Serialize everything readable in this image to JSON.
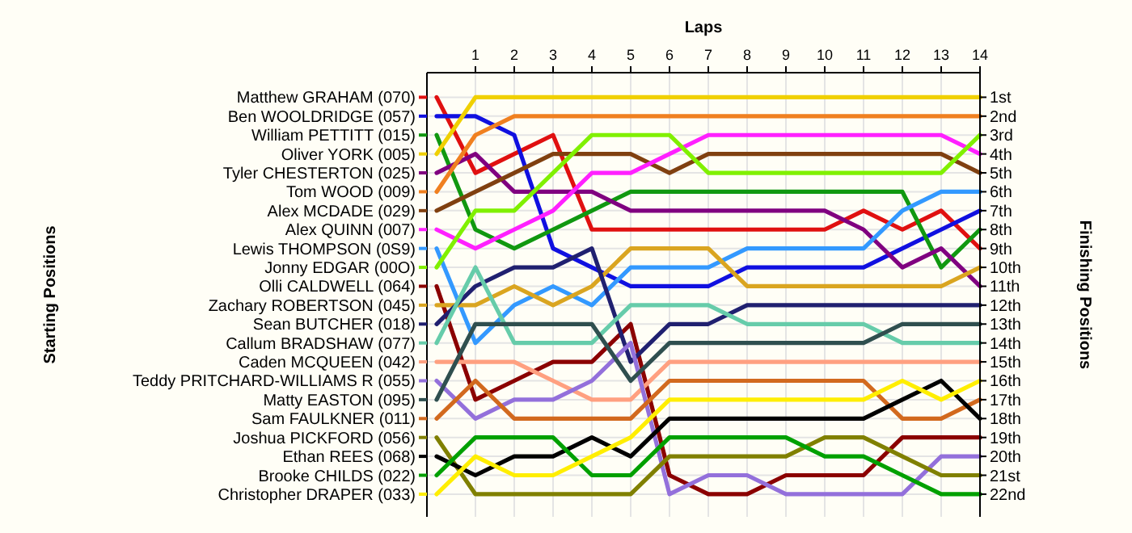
{
  "chart_data": {
    "type": "line",
    "xlabel": "Laps",
    "legend_title": "Starting Positions",
    "y2label": "Finishing Positions",
    "x": [
      0,
      1,
      2,
      3,
      4,
      5,
      6,
      7,
      8,
      9,
      10,
      11,
      12,
      13,
      14
    ],
    "xlim": [
      -0.25,
      14
    ],
    "xticks": [
      1,
      2,
      3,
      4,
      5,
      6,
      7,
      8,
      9,
      10,
      11,
      12,
      13,
      14
    ],
    "y2lim": [
      23.2,
      -0.3
    ],
    "y2ticks": [
      {
        "value": 1,
        "label": "1st"
      },
      {
        "value": 2,
        "label": "2nd"
      },
      {
        "value": 3,
        "label": "3rd"
      },
      {
        "value": 4,
        "label": "4th"
      },
      {
        "value": 5,
        "label": "5th"
      },
      {
        "value": 6,
        "label": "6th"
      },
      {
        "value": 7,
        "label": "7th"
      },
      {
        "value": 8,
        "label": "8th"
      },
      {
        "value": 9,
        "label": "9th"
      },
      {
        "value": 10,
        "label": "10th"
      },
      {
        "value": 11,
        "label": "11th"
      },
      {
        "value": 12,
        "label": "12th"
      },
      {
        "value": 13,
        "label": "13th"
      },
      {
        "value": 14,
        "label": "14th"
      },
      {
        "value": 15,
        "label": "15th"
      },
      {
        "value": 16,
        "label": "16th"
      },
      {
        "value": 17,
        "label": "17th"
      },
      {
        "value": 18,
        "label": "18th"
      },
      {
        "value": 19,
        "label": "19th"
      },
      {
        "value": 20,
        "label": "20th"
      },
      {
        "value": 21,
        "label": "21st"
      },
      {
        "value": 22,
        "label": "22nd"
      }
    ],
    "grid": true,
    "legend": "left",
    "marker": "none",
    "line_style": "solid",
    "series": [
      {
        "name": "Matthew GRAHAM (070)",
        "axis": "y2",
        "color": "#e01010",
        "values": [
          1,
          5,
          4,
          3,
          8,
          8,
          8,
          8,
          8,
          8,
          8,
          7,
          8,
          7,
          9
        ]
      },
      {
        "name": "Ben WOOLDRIDGE (057)",
        "axis": "y2",
        "color": "#1010e0",
        "values": [
          2,
          2,
          3,
          9,
          10,
          11,
          11,
          11,
          10,
          10,
          10,
          10,
          9,
          8,
          7
        ]
      },
      {
        "name": "William PETTITT (015)",
        "axis": "y2",
        "color": "#109810",
        "values": [
          3,
          8,
          9,
          8,
          7,
          6,
          6,
          6,
          6,
          6,
          6,
          6,
          6,
          10,
          8
        ]
      },
      {
        "name": "Oliver YORK (005)",
        "axis": "y2",
        "color": "#f0d000",
        "values": [
          4,
          1,
          1,
          1,
          1,
          1,
          1,
          1,
          1,
          1,
          1,
          1,
          1,
          1,
          1
        ]
      },
      {
        "name": "Tyler CHESTERTON (025)",
        "axis": "y2",
        "color": "#800080",
        "values": [
          5,
          4,
          6,
          6,
          6,
          7,
          7,
          7,
          7,
          7,
          7,
          8,
          10,
          9,
          11
        ]
      },
      {
        "name": "Tom WOOD (009)",
        "axis": "y2",
        "color": "#f08020",
        "values": [
          6,
          3,
          2,
          2,
          2,
          2,
          2,
          2,
          2,
          2,
          2,
          2,
          2,
          2,
          2
        ]
      },
      {
        "name": "Alex MCDADE (029)",
        "axis": "y2",
        "color": "#804010",
        "values": [
          7,
          6,
          5,
          4,
          4,
          4,
          5,
          4,
          4,
          4,
          4,
          4,
          4,
          4,
          5
        ]
      },
      {
        "name": "Alex QUINN (007)",
        "axis": "y2",
        "color": "#ff20ff",
        "values": [
          8,
          9,
          8,
          7,
          5,
          5,
          4,
          3,
          3,
          3,
          3,
          3,
          3,
          3,
          4
        ]
      },
      {
        "name": "Lewis THOMPSON (0S9)",
        "axis": "y2",
        "color": "#3399ff",
        "values": [
          9,
          14,
          12,
          11,
          12,
          10,
          10,
          10,
          9,
          9,
          9,
          9,
          7,
          6,
          6
        ]
      },
      {
        "name": "Jonny EDGAR (00O)",
        "axis": "y2",
        "color": "#80f000",
        "values": [
          10,
          7,
          7,
          5,
          3,
          3,
          3,
          5,
          5,
          5,
          5,
          5,
          5,
          5,
          3
        ]
      },
      {
        "name": "Olli CALDWELL (064)",
        "axis": "y2",
        "color": "#8b0000",
        "values": [
          11,
          17,
          16,
          15,
          15,
          13,
          21,
          22,
          22,
          21,
          21,
          21,
          19,
          19,
          19
        ]
      },
      {
        "name": "Zachary ROBERTSON (045)",
        "axis": "y2",
        "color": "#daa520",
        "values": [
          12,
          12,
          11,
          12,
          11,
          9,
          9,
          9,
          11,
          11,
          11,
          11,
          11,
          11,
          10
        ]
      },
      {
        "name": "Sean BUTCHER (018)",
        "axis": "y2",
        "color": "#202070",
        "values": [
          13,
          11,
          10,
          10,
          9,
          15,
          13,
          13,
          12,
          12,
          12,
          12,
          12,
          12,
          12
        ]
      },
      {
        "name": "Callum BRADSHAW (077)",
        "axis": "y2",
        "color": "#66ccaa",
        "values": [
          14,
          10,
          14,
          14,
          14,
          12,
          12,
          12,
          13,
          13,
          13,
          13,
          14,
          14,
          14
        ]
      },
      {
        "name": "Caden MCQUEEN (042)",
        "axis": "y2",
        "color": "#ffa080",
        "values": [
          15,
          15,
          15,
          16,
          17,
          17,
          15,
          15,
          15,
          15,
          15,
          15,
          15,
          15,
          15
        ]
      },
      {
        "name": "Teddy PRITCHARD-WILLIAMS R (055)",
        "axis": "y2",
        "color": "#9370db",
        "values": [
          16,
          18,
          17,
          17,
          16,
          14,
          22,
          21,
          21,
          22,
          22,
          22,
          22,
          20,
          20
        ]
      },
      {
        "name": "Matty EASTON (095)",
        "axis": "y2",
        "color": "#2f4f4f",
        "values": [
          17,
          13,
          13,
          13,
          13,
          16,
          14,
          14,
          14,
          14,
          14,
          14,
          13,
          13,
          13
        ]
      },
      {
        "name": "Sam FAULKNER (011)",
        "axis": "y2",
        "color": "#d2691e",
        "values": [
          18,
          16,
          18,
          18,
          18,
          18,
          16,
          16,
          16,
          16,
          16,
          16,
          18,
          18,
          17
        ]
      },
      {
        "name": "Joshua PICKFORD (056)",
        "axis": "y2",
        "color": "#808000",
        "values": [
          19,
          22,
          22,
          22,
          22,
          22,
          20,
          20,
          20,
          20,
          19,
          19,
          20,
          21,
          21
        ]
      },
      {
        "name": "Ethan REES (068)",
        "axis": "y2",
        "color": "#000000",
        "values": [
          20,
          21,
          20,
          20,
          19,
          20,
          18,
          18,
          18,
          18,
          18,
          18,
          17,
          16,
          18
        ]
      },
      {
        "name": "Brooke CHILDS (022)",
        "axis": "y2",
        "color": "#00a000",
        "values": [
          21,
          19,
          19,
          19,
          21,
          21,
          19,
          19,
          19,
          19,
          20,
          20,
          21,
          22,
          22
        ]
      },
      {
        "name": "Christopher DRAPER (033)",
        "axis": "y2",
        "color": "#ffee00",
        "values": [
          22,
          20,
          21,
          21,
          20,
          19,
          17,
          17,
          17,
          17,
          17,
          17,
          16,
          17,
          16
        ]
      }
    ]
  }
}
